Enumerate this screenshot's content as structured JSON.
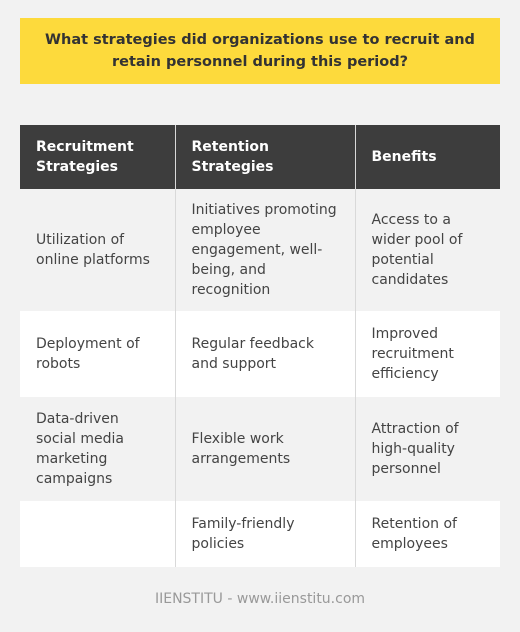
{
  "question": "What strategies did organizations use to recruit and retain personnel during this period?",
  "table": {
    "headers": [
      "Recruitment Strategies",
      "Retention Strategies",
      "Benefits"
    ],
    "rows": [
      [
        "Utilization of online platforms",
        "Initiatives promoting employee engagement, well-being, and recognition",
        "Access to a wider pool of potential candidates"
      ],
      [
        "Deployment of robots",
        "Regular feedback and support",
        "Improved recruitment efficiency"
      ],
      [
        "Data-driven social media marketing campaigns",
        "Flexible work arrangements",
        "Attraction of high-quality personnel"
      ],
      [
        "",
        "Family-friendly policies",
        "Retention of employees"
      ]
    ]
  },
  "footer": "IIENSTITU - www.iienstitu.com",
  "colors": {
    "question_bg": "#fdda3c",
    "header_bg": "#3d3d3d",
    "row_alt_bg": "#f2f2f2",
    "row_bg": "#ffffff"
  }
}
